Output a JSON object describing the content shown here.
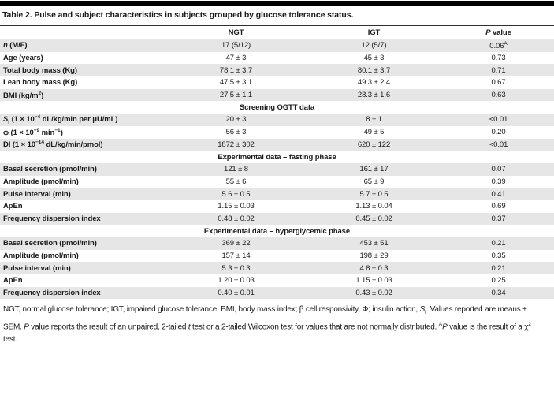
{
  "title": "Table 2. Pulse and subject characteristics in subjects grouped by glucose tolerance status.",
  "colors": {
    "top_bar": "#000000",
    "row_stripe": "#e6e6e6",
    "rule": "#2e2e2e",
    "text": "#1a1a1a"
  },
  "table": {
    "columns": {
      "label": "",
      "ngt": "NGT",
      "igt": "IGT",
      "p": "*P* value"
    },
    "rows": [
      {
        "type": "data",
        "label": "*n* (M/F)",
        "values": [
          "17 (5/12)",
          "12 (5/7)",
          "0.06^A^"
        ]
      },
      {
        "type": "data",
        "label": "Age (years)",
        "values": [
          "47 ± 3",
          "45 ± 3",
          "0.73"
        ]
      },
      {
        "type": "data",
        "label": "Total body mass (Kg)",
        "values": [
          "78.1 ± 3.7",
          "80.1 ± 3.7",
          "0.71"
        ]
      },
      {
        "type": "data",
        "label": "Lean body mass (Kg)",
        "values": [
          "47.5 ± 3.1",
          "49.3 ± 2.4",
          "0.67"
        ]
      },
      {
        "type": "data",
        "label": "BMI (kg/m^2^)",
        "values": [
          "27.5 ± 1.1",
          "28.3 ± 1.6",
          "0.63"
        ]
      },
      {
        "type": "section",
        "label": "Screening OGTT data"
      },
      {
        "type": "data",
        "label": "*S*~i~ (1 × 10^−4^ dL/kg/min per μU/mL)",
        "values": [
          "20 ± 3",
          "8 ± 1",
          "<0.01"
        ]
      },
      {
        "type": "data",
        "label": "ϕ (1 × 10^−9^ min^−1^)",
        "values": [
          "56 ± 3",
          "49 ± 5",
          "0.20"
        ]
      },
      {
        "type": "data",
        "label": "DI (1 × 10^−14^ dL/kg/min/pmol)",
        "values": [
          "1872 ± 302",
          "620 ± 122",
          "<0.01"
        ]
      },
      {
        "type": "section",
        "label": "Experimental data – fasting phase"
      },
      {
        "type": "data",
        "label": "Basal secretion (pmol/min)",
        "values": [
          "121 ± 8",
          "161 ± 17",
          "0.07"
        ]
      },
      {
        "type": "data",
        "label": "Amplitude (pmol/min)",
        "values": [
          "55 ± 6",
          "65 ± 9",
          "0.39"
        ]
      },
      {
        "type": "data",
        "label": "Pulse interval (min)",
        "values": [
          "5.6 ± 0.5",
          "5.7 ± 0.5",
          "0.41"
        ]
      },
      {
        "type": "data",
        "label": "ApEn",
        "values": [
          "1.15 ± 0.03",
          "1.13 ± 0.04",
          "0.69"
        ]
      },
      {
        "type": "data",
        "label": "Frequency dispersion index",
        "values": [
          "0.48 ± 0.02",
          "0.45 ± 0.02",
          "0.37"
        ]
      },
      {
        "type": "section",
        "label": "Experimental data – hyperglycemic phase"
      },
      {
        "type": "data",
        "label": "Basal secretion (pmol/min)",
        "values": [
          "369 ± 22",
          "453 ± 51",
          "0.21"
        ]
      },
      {
        "type": "data",
        "label": "Amplitude (pmol/min)",
        "values": [
          "157 ± 14",
          "198 ± 29",
          "0.35"
        ]
      },
      {
        "type": "data",
        "label": "Pulse interval (min)",
        "values": [
          "5.3 ± 0.3",
          "4.8 ± 0.3",
          "0.21"
        ]
      },
      {
        "type": "data",
        "label": "ApEn",
        "values": [
          "1.20 ± 0.03",
          "1.15 ± 0.03",
          "0.25"
        ]
      },
      {
        "type": "data",
        "label": "Frequency dispersion index",
        "values": [
          "0.40 ± 0.01",
          "0.43 ± 0.02",
          "0.34"
        ]
      }
    ]
  },
  "footnote": "NGT, normal glucose tolerance; IGT, impaired glucose tolerance; BMI, body mass index; β cell responsivity, Φ; insulin action, *S*~i~. Values reported are means ± SEM. *P* value reports the result of an unpaired, 2-tailed *t* test or a 2-tailed Wilcoxon test for values that are not normally distributed. ^A^*P* value is the result of a χ^2^ test."
}
